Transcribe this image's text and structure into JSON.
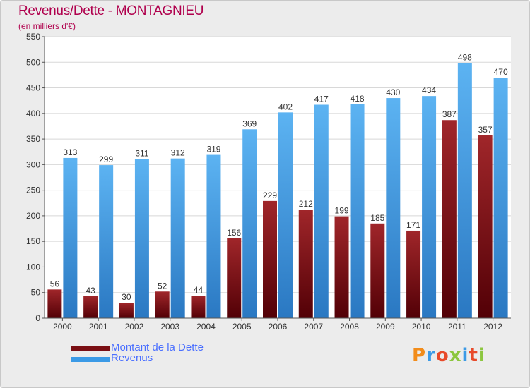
{
  "header": {
    "title": "Revenus/Dette - MONTAGNIEU",
    "subtitle": "(en milliers d'€)"
  },
  "colors": {
    "dette": "#7a0f14",
    "revenus": "#3b9ae6",
    "title": "#b0004d",
    "legend_text": "#4a6fff"
  },
  "logo": {
    "text": "Proxiti",
    "letter_colors": [
      "#f28c1a",
      "#3b9ae6",
      "#e84a2a",
      "#8cc63f",
      "#3b9ae6",
      "#e84a2a",
      "#8cc63f"
    ]
  },
  "chart_data": {
    "type": "bar",
    "categories": [
      "2000",
      "2001",
      "2002",
      "2003",
      "2004",
      "2005",
      "2006",
      "2007",
      "2008",
      "2009",
      "2010",
      "2011",
      "2012"
    ],
    "series": [
      {
        "name": "Montant de la Dette",
        "values": [
          56,
          43,
          30,
          52,
          44,
          156,
          229,
          212,
          199,
          185,
          171,
          387,
          357
        ]
      },
      {
        "name": "Revenus",
        "values": [
          313,
          299,
          311,
          312,
          319,
          369,
          402,
          417,
          418,
          430,
          434,
          498,
          470
        ]
      }
    ],
    "ylim": [
      0,
      550
    ],
    "yticks": [
      "0",
      "50",
      "100",
      "150",
      "200",
      "250",
      "300",
      "350",
      "400",
      "450",
      "500",
      "550"
    ],
    "grid": true,
    "legend_position": "bottom-left"
  }
}
